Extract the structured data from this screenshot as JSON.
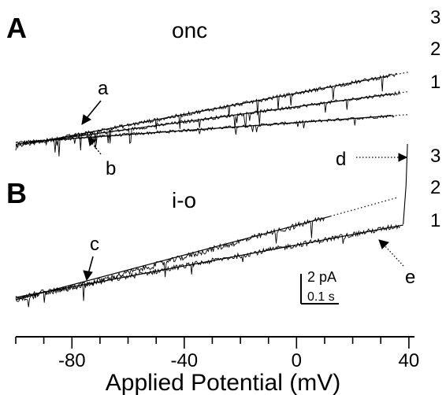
{
  "panels": [
    {
      "letter": "A",
      "title": "onc"
    },
    {
      "letter": "B",
      "title": "i-o"
    }
  ],
  "annotations": [
    "a",
    "b",
    "c",
    "d",
    "e"
  ],
  "scale_bar": {
    "current_label": "2 pA",
    "time_label": "0.1 s"
  },
  "colors": {
    "trace": "#000000",
    "background": "#ffffff"
  },
  "chart_data": [
    {
      "type": "line",
      "panel": "A",
      "title": "onc",
      "xlabel": "Applied Potential (mV)",
      "ylabel": "",
      "xlim": [
        -100,
        42
      ],
      "x_ticks": [
        -80,
        -40,
        0,
        40
      ],
      "grid": false,
      "series": [
        {
          "name": "1",
          "x": [
            -100,
            -88,
            40
          ],
          "y": [
            -0.3,
            0.0,
            3.0
          ]
        },
        {
          "name": "2",
          "x": [
            -100,
            -88,
            40
          ],
          "y": [
            -0.5,
            0.0,
            5.7
          ]
        },
        {
          "name": "3",
          "x": [
            -100,
            -88,
            40
          ],
          "y": [
            -0.7,
            0.0,
            8.0
          ]
        }
      ],
      "annotations": [
        {
          "label": "a",
          "x": -88
        },
        {
          "label": "b",
          "x": -88
        }
      ]
    },
    {
      "type": "line",
      "panel": "B",
      "title": "i-o",
      "xlabel": "Applied Potential (mV)",
      "ylabel": "",
      "xlim": [
        -100,
        42
      ],
      "x_ticks": [
        -80,
        -40,
        0,
        40
      ],
      "grid": false,
      "series": [
        {
          "name": "1",
          "x": [
            -100,
            -75,
            35
          ],
          "y": [
            0.0,
            1.1,
            6.0
          ]
        },
        {
          "name": "2",
          "x": [
            -100,
            -75,
            35
          ],
          "y": [
            -0.2,
            1.1,
            8.4
          ]
        },
        {
          "name": "3",
          "x": [
            38,
            39,
            39.5
          ],
          "y": [
            6.2,
            9.5,
            13.0
          ]
        }
      ],
      "annotations": [
        {
          "label": "c",
          "x": -75
        },
        {
          "label": "d",
          "x": 39
        },
        {
          "label": "e",
          "x": 28
        }
      ]
    }
  ]
}
